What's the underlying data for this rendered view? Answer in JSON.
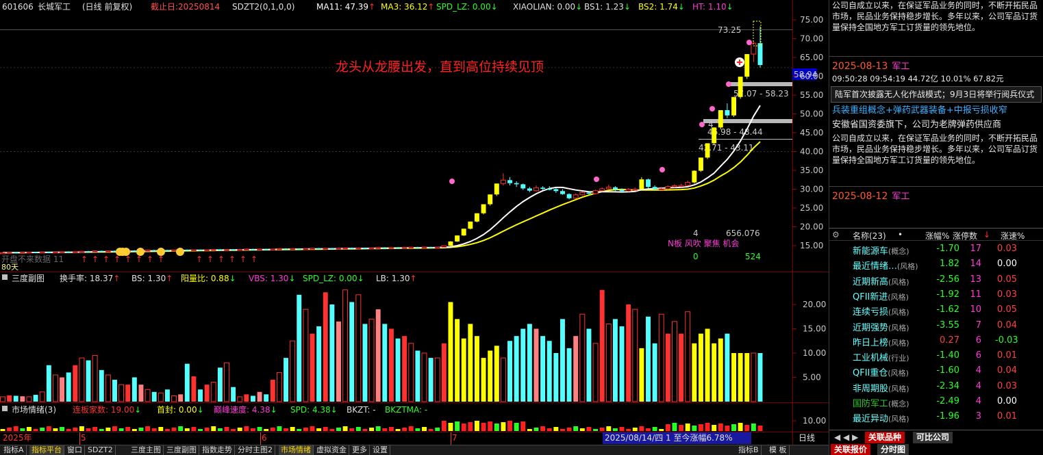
{
  "header": {
    "code": "601606",
    "name": "长城军工",
    "mode": "(日线 前复权)",
    "cutoff": "截止日:20250814",
    "sdzt": "SDZT2(0,1,0,0)",
    "ma11": "MA11: 47.39",
    "ma3": "MA3: 36.12",
    "spd_lz": "SPD_LZ: 0.00",
    "xiaolian": "XIAOLIAN: 0.00",
    "bs1": "BS1: 1.23",
    "bs2": "BS2: 1.74",
    "ht": "HT: 1.10"
  },
  "annotation": "龙头从龙腰出发，直到高位持续见顶",
  "labels": {
    "high_label": "73.25",
    "price_tag": "58.94",
    "range1": "57.07 - 58.23",
    "range2": "46.98 - 48.44",
    "range3": "42.71 - 43.11",
    "count4": "4",
    "num4b": "4",
    "vol_stat": "656.076",
    "n_row": "N板 风吹 聚焦 机会",
    "zero": "0",
    "v524": "524",
    "day80": "80天",
    "blurred": "开盘不来数据 11"
  },
  "sub1": {
    "title": "三度副图",
    "hsl": "换手率: 18.37",
    "bs": "BS: 1.30",
    "ylb": "阳量比: 0.88",
    "vbs": "VBS: 1.30",
    "spd": "SPD_LZ: 0.00",
    "lb": "LB: 1.30"
  },
  "sub2": {
    "title": "市场情绪(3)",
    "lbjs": "连板家数: 19.00",
    "sf": "首封: 0.00",
    "dfsd": "巅峰速度: 4.38",
    "spd": "SPD: 4.38",
    "bkzt": "BKZT: -",
    "bkztma": "BKZTMA: -"
  },
  "timeaxis": {
    "year": "2025年",
    "m5": "5",
    "m6": "6",
    "m7": "7",
    "info": "2025/08/14/四 1 至今涨幅6.78%",
    "period": "日线"
  },
  "right_axis": {
    "main": [
      "75.00",
      "70.00",
      "65.00",
      "60.00",
      "55.00",
      "50.00",
      "45.00",
      "40.00",
      "35.00",
      "30.00",
      "25.00",
      "20.00",
      "15.00"
    ],
    "sub1": [
      "20.00",
      "15.00",
      "10.00",
      "5.00"
    ],
    "sub2": [
      "10.00"
    ]
  },
  "news": {
    "top_text": "公司自成立以来，在保证军品业务的同时，不断开拓民品市场，民品业务保持稳步增长。多年以来，公司军品订货量保持全国地方军工订货量的领先地位。",
    "date1": "2025-08-13",
    "tag1": "军工",
    "stats": "09:50:28 09:54:19  44.72亿  10.01%  67.82元",
    "box": "陆军首次披露无人化作战模式；9月3日将举行阅兵仪式",
    "concept": "兵装重组概念+弹药武器装备+中报亏损收窄",
    "owner": "安徽省国资委旗下，公司为老牌弹药供应商",
    "mid_text": "公司自成立以来，在保证军品业务的同时，不断开拓民品市场，民品业务保持稳步增长。多年以来，公司军品订货量保持全国地方军工订货量的领先地位。",
    "date2": "2025-08-12",
    "tag2": "军工"
  },
  "list": {
    "h_name": "名称(23)",
    "h_dot": "•",
    "h_zf": "涨幅%",
    "h_cnt": "涨停数",
    "h_spd": "涨速%",
    "rows": [
      {
        "name": "新能源车",
        "kind": "(概念)",
        "zf": "-1.70",
        "cnt": "17",
        "spd": "0.03",
        "zfc": "#28ff28",
        "spc": "#ff4040"
      },
      {
        "name": "最近情绪…",
        "kind": "(风格)",
        "zf": "1.82",
        "cnt": "14",
        "spd": "0.00",
        "zfc": "#28ff28",
        "spc": "#ffffff"
      },
      {
        "name": "近期新高",
        "kind": "(风格)",
        "zf": "-2.56",
        "cnt": "13",
        "spd": "0.05",
        "zfc": "#28ff28",
        "spc": "#ff4040"
      },
      {
        "name": "QFII新进",
        "kind": "(风格)",
        "zf": "-1.92",
        "cnt": "11",
        "spd": "0.03",
        "zfc": "#28ff28",
        "spc": "#ff4040"
      },
      {
        "name": "连续亏损",
        "kind": "(风格)",
        "zf": "-1.62",
        "cnt": "10",
        "spd": "0.05",
        "zfc": "#28ff28",
        "spc": "#ff4040"
      },
      {
        "name": "近期强势",
        "kind": "(风格)",
        "zf": "-3.55",
        "cnt": "7",
        "spd": "0.04",
        "zfc": "#28ff28",
        "spc": "#ff4040"
      },
      {
        "name": "昨日上榜",
        "kind": "(风格)",
        "zf": "0.27",
        "cnt": "6",
        "spd": "-0.03",
        "zfc": "#ff4040",
        "spc": "#28ff28"
      },
      {
        "name": "工业机械",
        "kind": "(行业)",
        "zf": "-1.40",
        "cnt": "6",
        "spd": "0.01",
        "zfc": "#28ff28",
        "spc": "#ff4040"
      },
      {
        "name": "QFII重仓",
        "kind": "(风格)",
        "zf": "-1.60",
        "cnt": "4",
        "spd": "0.04",
        "zfc": "#28ff28",
        "spc": "#ff4040"
      },
      {
        "name": "非周期股",
        "kind": "(风格)",
        "zf": "-2.34",
        "cnt": "4",
        "spd": "0.03",
        "zfc": "#28ff28",
        "spc": "#ff4040"
      },
      {
        "name": "国防军工",
        "kind": "(概念)",
        "zf": "-2.49",
        "cnt": "4",
        "spd": "0.00",
        "zfc": "#28ff28",
        "spc": "#ffffff"
      },
      {
        "name": "最近异动",
        "kind": "(风格)",
        "zf": "-1.96",
        "cnt": "3",
        "spd": "0.01",
        "zfc": "#28ff28",
        "spc": "#ff4040"
      }
    ]
  },
  "rtabs": {
    "t1": "关联品种",
    "t2": "可比公司",
    "t3": "关联报价",
    "t4": "分时图"
  },
  "bottom_tabs": [
    "指标A",
    "指标平台",
    "窗口",
    "SDZT2",
    "三度主图",
    "三度副图",
    "指数走势",
    "分时主图2",
    "市场情绪",
    "虚拟资金",
    "更多",
    "设置"
  ],
  "bottom_right_tabs": [
    "指标B",
    "模 板"
  ],
  "colors": {
    "up": "#ff3232",
    "down": "#54ffff",
    "yellow": "#ffff00",
    "pink": "#ff8080",
    "ma_white": "#ffffff",
    "ma_yellow": "#ffff00"
  },
  "chart_data": {
    "type": "candlestick",
    "title": "",
    "ylim": [
      10,
      77
    ],
    "candles": [
      [
        13.0,
        13.1,
        13.2,
        12.9
      ],
      [
        13.1,
        13.2,
        13.3,
        13.0
      ],
      [
        13.2,
        13.1,
        13.3,
        13.0
      ],
      [
        13.1,
        13.2,
        13.3,
        13.0
      ],
      [
        13.2,
        13.3,
        13.4,
        13.1
      ],
      [
        13.3,
        13.2,
        13.4,
        13.1
      ],
      [
        13.2,
        13.3,
        13.4,
        13.1
      ],
      [
        13.3,
        13.2,
        13.4,
        13.1
      ],
      [
        13.2,
        13.3,
        13.4,
        13.1
      ],
      [
        13.3,
        13.4,
        13.5,
        13.2
      ],
      [
        13.4,
        13.3,
        13.5,
        13.2
      ],
      [
        13.3,
        13.4,
        13.5,
        13.2
      ],
      [
        13.4,
        13.5,
        13.6,
        13.3
      ],
      [
        13.5,
        13.4,
        13.6,
        13.3
      ],
      [
        13.4,
        13.6,
        13.7,
        13.3
      ],
      [
        13.6,
        13.5,
        13.7,
        13.4
      ],
      [
        13.5,
        13.6,
        13.7,
        13.4
      ],
      [
        13.6,
        13.5,
        13.7,
        13.4
      ],
      [
        13.5,
        13.6,
        13.7,
        13.4
      ],
      [
        13.6,
        13.7,
        13.8,
        13.5
      ],
      [
        13.7,
        13.6,
        13.8,
        13.5
      ],
      [
        13.6,
        13.7,
        13.8,
        13.5
      ],
      [
        13.7,
        13.8,
        13.9,
        13.6
      ],
      [
        13.8,
        13.7,
        13.9,
        13.6
      ],
      [
        13.7,
        13.8,
        13.9,
        13.6
      ],
      [
        13.8,
        13.7,
        13.9,
        13.6
      ],
      [
        13.7,
        13.8,
        13.9,
        13.6
      ],
      [
        13.8,
        13.9,
        14.0,
        13.7
      ],
      [
        13.9,
        13.8,
        14.0,
        13.7
      ],
      [
        13.8,
        13.9,
        14.0,
        13.7
      ],
      [
        13.9,
        13.8,
        14.0,
        13.7
      ],
      [
        13.8,
        13.9,
        14.0,
        13.7
      ],
      [
        13.9,
        14.0,
        14.1,
        13.8
      ],
      [
        14.0,
        13.9,
        14.1,
        13.8
      ],
      [
        13.9,
        14.0,
        14.1,
        13.8
      ],
      [
        14.0,
        13.9,
        14.1,
        13.8
      ],
      [
        13.9,
        14.0,
        14.1,
        13.8
      ],
      [
        14.0,
        14.1,
        14.2,
        13.9
      ],
      [
        14.1,
        14.0,
        14.2,
        13.9
      ],
      [
        14.0,
        14.1,
        14.2,
        13.9
      ],
      [
        14.1,
        14.0,
        14.2,
        13.9
      ],
      [
        14.0,
        14.1,
        14.2,
        13.9
      ],
      [
        14.1,
        14.2,
        14.3,
        14.0
      ],
      [
        14.2,
        14.1,
        14.3,
        14.0
      ],
      [
        14.1,
        14.2,
        14.3,
        14.0
      ],
      [
        14.2,
        14.1,
        14.3,
        14.0
      ],
      [
        14.1,
        14.2,
        14.3,
        14.0
      ],
      [
        14.2,
        14.3,
        14.4,
        14.1
      ],
      [
        14.3,
        14.2,
        14.4,
        14.1
      ],
      [
        14.2,
        14.3,
        14.4,
        14.1
      ],
      [
        14.3,
        14.2,
        14.4,
        14.1
      ],
      [
        14.2,
        14.3,
        14.4,
        14.1
      ],
      [
        14.3,
        14.4,
        14.5,
        14.2
      ],
      [
        14.4,
        14.3,
        14.5,
        14.2
      ],
      [
        14.3,
        14.4,
        14.5,
        14.2
      ],
      [
        14.4,
        14.3,
        14.5,
        14.2
      ],
      [
        14.3,
        14.4,
        14.5,
        14.2
      ],
      [
        14.4,
        14.5,
        14.6,
        14.3
      ],
      [
        14.5,
        14.4,
        14.6,
        14.3
      ],
      [
        14.4,
        14.5,
        14.6,
        14.3
      ],
      [
        14.5,
        14.4,
        14.6,
        14.3
      ],
      [
        14.4,
        14.5,
        14.6,
        14.3
      ],
      [
        14.5,
        14.6,
        14.7,
        14.4
      ],
      [
        14.6,
        14.5,
        14.7,
        14.4
      ],
      [
        14.5,
        14.6,
        14.7,
        14.4
      ],
      [
        14.6,
        14.5,
        14.7,
        14.4
      ],
      [
        14.5,
        14.6,
        14.7,
        14.4
      ],
      [
        14.6,
        15.0,
        15.1,
        14.5
      ],
      [
        15.0,
        16.1,
        16.2,
        14.9
      ],
      [
        16.1,
        17.7,
        17.7,
        16.0
      ],
      [
        17.7,
        19.5,
        19.5,
        17.6
      ],
      [
        19.5,
        21.4,
        21.4,
        19.3
      ],
      [
        21.4,
        23.6,
        23.6,
        21.2
      ],
      [
        23.6,
        26.0,
        26.0,
        23.3
      ],
      [
        26.0,
        28.6,
        28.6,
        25.6
      ],
      [
        28.6,
        31.5,
        31.5,
        28.2
      ],
      [
        31.5,
        32.4,
        34.2,
        31.0
      ],
      [
        32.4,
        31.6,
        33.2,
        31.0
      ],
      [
        31.6,
        31.3,
        32.1,
        30.6
      ],
      [
        31.3,
        30.2,
        31.5,
        29.8
      ],
      [
        30.2,
        29.6,
        30.6,
        29.2
      ],
      [
        29.6,
        30.4,
        31.0,
        29.4
      ],
      [
        30.4,
        30.1,
        30.8,
        29.8
      ],
      [
        30.1,
        30.0,
        30.8,
        29.7
      ],
      [
        30.0,
        29.5,
        30.4,
        29.0
      ],
      [
        29.5,
        28.7,
        30.0,
        28.5
      ],
      [
        28.7,
        27.6,
        28.9,
        27.3
      ],
      [
        27.6,
        28.5,
        28.9,
        27.3
      ],
      [
        28.5,
        29.1,
        29.4,
        28.3
      ],
      [
        29.1,
        28.8,
        29.5,
        28.5
      ],
      [
        28.8,
        29.6,
        29.9,
        28.6
      ],
      [
        29.6,
        30.1,
        30.5,
        29.4
      ],
      [
        30.1,
        30.5,
        31.2,
        29.8
      ],
      [
        30.5,
        29.9,
        30.8,
        29.5
      ],
      [
        29.9,
        29.5,
        30.2,
        29.2
      ],
      [
        29.5,
        30.0,
        30.3,
        29.3
      ],
      [
        30.0,
        30.0,
        30.4,
        29.7
      ],
      [
        30.0,
        32.6,
        33.2,
        29.9
      ],
      [
        32.6,
        30.6,
        32.8,
        30.1
      ],
      [
        30.6,
        30.0,
        31.0,
        29.8
      ],
      [
        30.0,
        30.1,
        30.6,
        29.7
      ],
      [
        30.1,
        30.7,
        31.0,
        29.8
      ],
      [
        30.7,
        30.9,
        31.3,
        30.4
      ],
      [
        30.9,
        31.0,
        31.4,
        30.5
      ],
      [
        31.0,
        31.8,
        32.3,
        30.8
      ],
      [
        31.8,
        34.9,
        35.0,
        31.5
      ],
      [
        34.9,
        38.4,
        38.4,
        34.6
      ],
      [
        38.4,
        42.2,
        42.2,
        38.0
      ],
      [
        42.2,
        46.4,
        46.4,
        41.7
      ],
      [
        46.4,
        51.0,
        51.0,
        45.9
      ],
      [
        51.0,
        49.6,
        52.8,
        48.9
      ],
      [
        49.6,
        54.5,
        54.5,
        49.2
      ],
      [
        54.5,
        59.9,
        59.9,
        54.0
      ],
      [
        59.9,
        65.9,
        65.9,
        59.3
      ],
      [
        65.9,
        68.8,
        69.5,
        63.8
      ],
      [
        68.8,
        63.0,
        73.25,
        62.3
      ]
    ],
    "ma11_last": 47.39,
    "ma3_last": 36.12
  }
}
